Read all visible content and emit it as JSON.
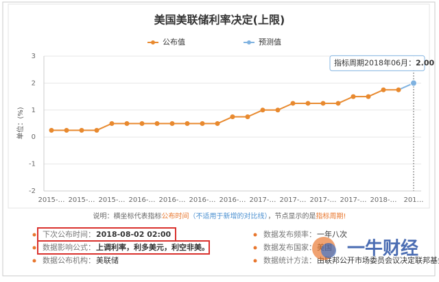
{
  "chart_data": {
    "type": "line",
    "title": "美国美联储利率决定(上限)",
    "y_label": "单位：(%)",
    "categories": [
      "2015-…",
      null,
      "2015-…",
      null,
      "2015-…",
      null,
      "2016-…",
      null,
      "2016-…",
      null,
      "2016-…",
      null,
      "2016-…",
      null,
      "2017-…",
      null,
      "2017-…",
      null,
      "2017-…",
      null,
      "2017-…",
      null,
      "2018-…",
      null,
      "201…"
    ],
    "series": [
      {
        "name": "公布值",
        "color": "#e8892e",
        "values": [
          0.25,
          0.25,
          0.25,
          0.25,
          0.5,
          0.5,
          0.5,
          0.5,
          0.5,
          0.5,
          0.5,
          0.5,
          0.75,
          0.75,
          1,
          1,
          1.25,
          1.25,
          1.25,
          1.25,
          1.5,
          1.5,
          1.75,
          1.75,
          null
        ]
      },
      {
        "name": "预测值",
        "color": "#7fb2e0",
        "values": [
          null,
          null,
          null,
          null,
          null,
          null,
          null,
          null,
          null,
          null,
          null,
          null,
          null,
          null,
          null,
          null,
          null,
          null,
          null,
          null,
          null,
          null,
          null,
          null,
          2
        ],
        "value_labels": [
          null,
          null,
          null,
          null,
          null,
          null,
          null,
          null,
          null,
          null,
          null,
          null,
          null,
          null,
          null,
          null,
          null,
          null,
          null,
          null,
          null,
          null,
          null,
          null,
          "2.00"
        ]
      }
    ],
    "ylim": [
      -2,
      3
    ],
    "yticks": [
      -2,
      -1,
      0,
      1,
      2,
      3
    ],
    "grid": true,
    "tooltip": "指标周期2018年06月：",
    "footnote": [
      {
        "text": "说明：横坐标代表指标",
        "color": "#666666"
      },
      {
        "text": "公布时间",
        "color": "#e8772e"
      },
      {
        "text": "（不适用于新增的对比线）",
        "color": "#4a8fd0"
      },
      {
        "text": "，节点显示的是",
        "color": "#666666"
      },
      {
        "text": "指标周期!",
        "color": "#e8772e"
      }
    ]
  },
  "info": {
    "left": [
      {
        "label": "下次公布时间：",
        "value": "2018-08-02 02:00"
      },
      {
        "label": "数据影响公式：",
        "value": "上调利率，利多美元，利空非美。"
      },
      {
        "label": "数据公布机构：",
        "value": "美联储"
      }
    ],
    "right": [
      {
        "label": "数据发布频率：",
        "value": "一年八次"
      },
      {
        "label": "数据发布国家：",
        "value": "美国"
      },
      {
        "label": "数据统计方法：",
        "value": "由联邦公开市场委员会议决定联邦基金利率"
      }
    ]
  },
  "watermark": "一牛财经"
}
